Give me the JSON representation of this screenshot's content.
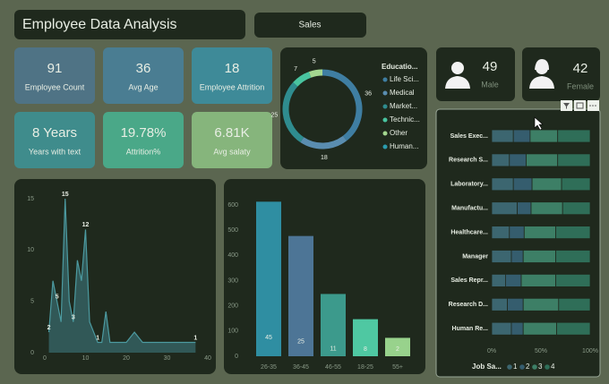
{
  "header": {
    "title": "Employee Data Analysis",
    "button": "Sales"
  },
  "kpis": [
    {
      "value": "91",
      "label": "Employee Count",
      "color": "#4f7385"
    },
    {
      "value": "36",
      "label": "Avg Age",
      "color": "#4a7d92"
    },
    {
      "value": "18",
      "label": "Employee Attrition",
      "color": "#3e8a98"
    },
    {
      "value": "8 Years",
      "label": "Years with text",
      "color": "#3f8c8c"
    },
    {
      "value": "19.78%",
      "label": "Attrition%",
      "color": "#4aa888"
    },
    {
      "value": "6.81K",
      "label": "Avg salaty",
      "color": "#86b57c"
    }
  ],
  "gender": [
    {
      "value": "49",
      "label": "Male"
    },
    {
      "value": "42",
      "label": "Female"
    }
  ],
  "chart_data": [
    {
      "type": "pie",
      "donut": true,
      "legend_title": "Educatio...",
      "categories": [
        "Life Sci...",
        "Medical",
        "Market...",
        "Technic...",
        "Other",
        "Human..."
      ],
      "values": [
        36,
        18,
        25,
        7,
        5,
        null
      ],
      "colors": [
        "#3f7ea2",
        "#5a8db0",
        "#2f8c8f",
        "#49c4a0",
        "#a3d68f",
        "#2b9cae"
      ]
    },
    {
      "type": "area",
      "color": "#3f7f86",
      "x": [
        1,
        2,
        3,
        4,
        5,
        6,
        7,
        8,
        9,
        10,
        11,
        12,
        13,
        14,
        15,
        16,
        18,
        20,
        22,
        24,
        25,
        26,
        28,
        29,
        37
      ],
      "values": [
        2,
        7,
        5,
        3,
        15,
        5,
        3,
        9,
        7,
        12,
        3,
        2,
        1,
        1,
        4,
        1,
        1,
        1,
        2,
        1,
        1,
        1,
        1,
        1,
        1
      ],
      "show_labels": [
        true,
        false,
        true,
        false,
        true,
        false,
        true,
        false,
        false,
        true,
        false,
        false,
        true,
        false,
        false,
        false,
        false,
        false,
        false,
        false,
        false,
        false,
        false,
        false,
        true
      ],
      "xlim": [
        0,
        40
      ],
      "xticks": [
        0,
        10,
        20,
        30,
        40
      ],
      "ylim": [
        0,
        15
      ],
      "yticks": [
        0,
        5,
        10,
        15
      ]
    },
    {
      "type": "bar",
      "categories": [
        "26-35",
        "36-45",
        "46-55",
        "18-25",
        "55+"
      ],
      "values": [
        613,
        477,
        247,
        147,
        73
      ],
      "counts": [
        45,
        25,
        11,
        8,
        2
      ],
      "colors": [
        "#2f8ea2",
        "#4d7596",
        "#3c9a8c",
        "#4fc8a2",
        "#98d28c"
      ],
      "ylim": [
        0,
        620
      ],
      "yticks": [
        0,
        100,
        200,
        300,
        400,
        500,
        600
      ]
    },
    {
      "type": "stacked_bar_h",
      "legend_title": "Job Sa...",
      "categories": [
        "Sales Exec...",
        "Research S...",
        "Laboratory...",
        "Manufactu...",
        "Healthcare...",
        "Manager",
        "Sales Repr...",
        "Research D...",
        "Human Re..."
      ],
      "series": [
        {
          "name": "1",
          "color": "#3c6670",
          "values": [
            22,
            18,
            22,
            26,
            18,
            20,
            14,
            16,
            20
          ]
        },
        {
          "name": "2",
          "color": "#355d6e",
          "values": [
            17,
            17,
            19,
            14,
            15,
            12,
            16,
            16,
            12
          ]
        },
        {
          "name": "3",
          "color": "#3d7f66",
          "values": [
            28,
            32,
            30,
            32,
            32,
            33,
            35,
            36,
            34
          ]
        },
        {
          "name": "4",
          "color": "#2f6e58",
          "values": [
            33,
            33,
            29,
            28,
            35,
            35,
            35,
            32,
            34
          ]
        }
      ],
      "xlim": [
        0,
        100
      ],
      "xticks": [
        {
          "value": 0,
          "label": "0%"
        },
        {
          "value": 50,
          "label": "50%"
        },
        {
          "value": 100,
          "label": "100%"
        }
      ]
    }
  ]
}
